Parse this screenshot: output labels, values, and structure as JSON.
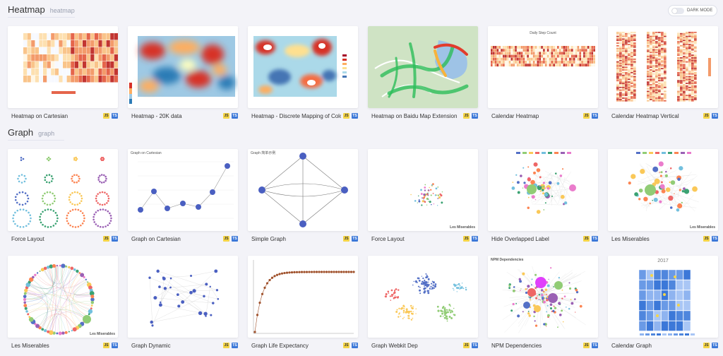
{
  "header": {
    "dark_mode_label": "DARK MODE"
  },
  "sections": [
    {
      "title": "Heatmap",
      "subtitle": "heatmap",
      "cards": [
        {
          "title": "Heatmap on Cartesian",
          "js": "JS",
          "ts": "TS"
        },
        {
          "title": "Heatmap - 20K data",
          "js": "JS",
          "ts": "TS"
        },
        {
          "title": "Heatmap - Discrete Mapping of Color",
          "js": "JS",
          "ts": "TS"
        },
        {
          "title": "Heatmap on Baidu Map Extension",
          "js": "JS",
          "ts": "TS"
        },
        {
          "title": "Calendar Heatmap",
          "js": "JS",
          "ts": "TS"
        },
        {
          "title": "Calendar Heatmap Vertical",
          "js": "JS",
          "ts": "TS"
        }
      ]
    },
    {
      "title": "Graph",
      "subtitle": "graph",
      "cards": [
        {
          "title": "Force Layout",
          "js": "JS",
          "ts": "TS"
        },
        {
          "title": "Graph on Cartesian",
          "js": "JS",
          "ts": "TS"
        },
        {
          "title": "Simple Graph",
          "js": "JS",
          "ts": "TS"
        },
        {
          "title": "Force Layout",
          "js": "JS",
          "ts": "TS"
        },
        {
          "title": "Hide Overlapped Label",
          "js": "JS",
          "ts": "TS"
        },
        {
          "title": "Les Miserables",
          "js": "JS",
          "ts": "TS"
        },
        {
          "title": "Les Miserables",
          "js": "JS",
          "ts": "TS"
        },
        {
          "title": "Graph Dynamic",
          "js": "JS",
          "ts": "TS"
        },
        {
          "title": "Graph Life Expectancy",
          "js": "JS",
          "ts": "TS"
        },
        {
          "title": "Graph Webkit Dep",
          "js": "JS",
          "ts": "TS"
        },
        {
          "title": "NPM Dependencies",
          "js": "JS",
          "ts": "TS"
        },
        {
          "title": "Calendar Graph",
          "js": "JS",
          "ts": "TS"
        }
      ]
    }
  ],
  "thumb_text": {
    "calendar_title": "Daily Step Count",
    "graph_cartesian_title": "Graph on Cartesian",
    "simple_graph_title": "Graph 简单示例",
    "les_mis_label": "Les Miserables",
    "npm_title": "NPM Dependencies",
    "calendar_graph_year": "2017"
  },
  "colors": {
    "js_badge": "#f5d547",
    "ts_badge": "#3c78d8",
    "node_blue": "#4a5fc1",
    "heat_red": "#c23531"
  }
}
